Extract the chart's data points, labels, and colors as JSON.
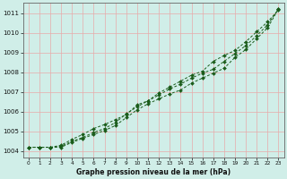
{
  "xlabel": "Graphe pression niveau de la mer (hPa)",
  "xlim": [
    -0.5,
    23.5
  ],
  "ylim": [
    1003.7,
    1011.5
  ],
  "yticks": [
    1004,
    1005,
    1006,
    1007,
    1008,
    1009,
    1010,
    1011
  ],
  "xticks": [
    0,
    1,
    2,
    3,
    4,
    5,
    6,
    7,
    8,
    9,
    10,
    11,
    12,
    13,
    14,
    15,
    16,
    17,
    18,
    19,
    20,
    21,
    22,
    23
  ],
  "bg_color": "#d0eee8",
  "grid_color": "#e8aaaa",
  "line_color": "#1a5c1a",
  "line1": [
    1004.2,
    1004.2,
    1004.2,
    1004.2,
    1004.45,
    1004.65,
    1004.85,
    1005.05,
    1005.3,
    1005.7,
    1006.1,
    1006.4,
    1006.65,
    1006.9,
    1007.1,
    1007.45,
    1007.7,
    1007.95,
    1008.2,
    1008.75,
    1009.15,
    1009.7,
    1010.25,
    1011.2
  ],
  "line2": [
    1004.2,
    1004.2,
    1004.2,
    1004.25,
    1004.5,
    1004.7,
    1004.95,
    1005.15,
    1005.45,
    1005.9,
    1006.25,
    1006.55,
    1006.85,
    1007.15,
    1007.4,
    1007.7,
    1007.95,
    1008.15,
    1008.55,
    1008.95,
    1009.35,
    1009.85,
    1010.4,
    1011.2
  ],
  "line3": [
    1004.2,
    1004.2,
    1004.2,
    1004.3,
    1004.6,
    1004.85,
    1005.15,
    1005.35,
    1005.6,
    1005.85,
    1006.35,
    1006.55,
    1006.95,
    1007.25,
    1007.55,
    1007.85,
    1008.05,
    1008.55,
    1008.85,
    1009.1,
    1009.55,
    1010.05,
    1010.55,
    1011.15
  ]
}
